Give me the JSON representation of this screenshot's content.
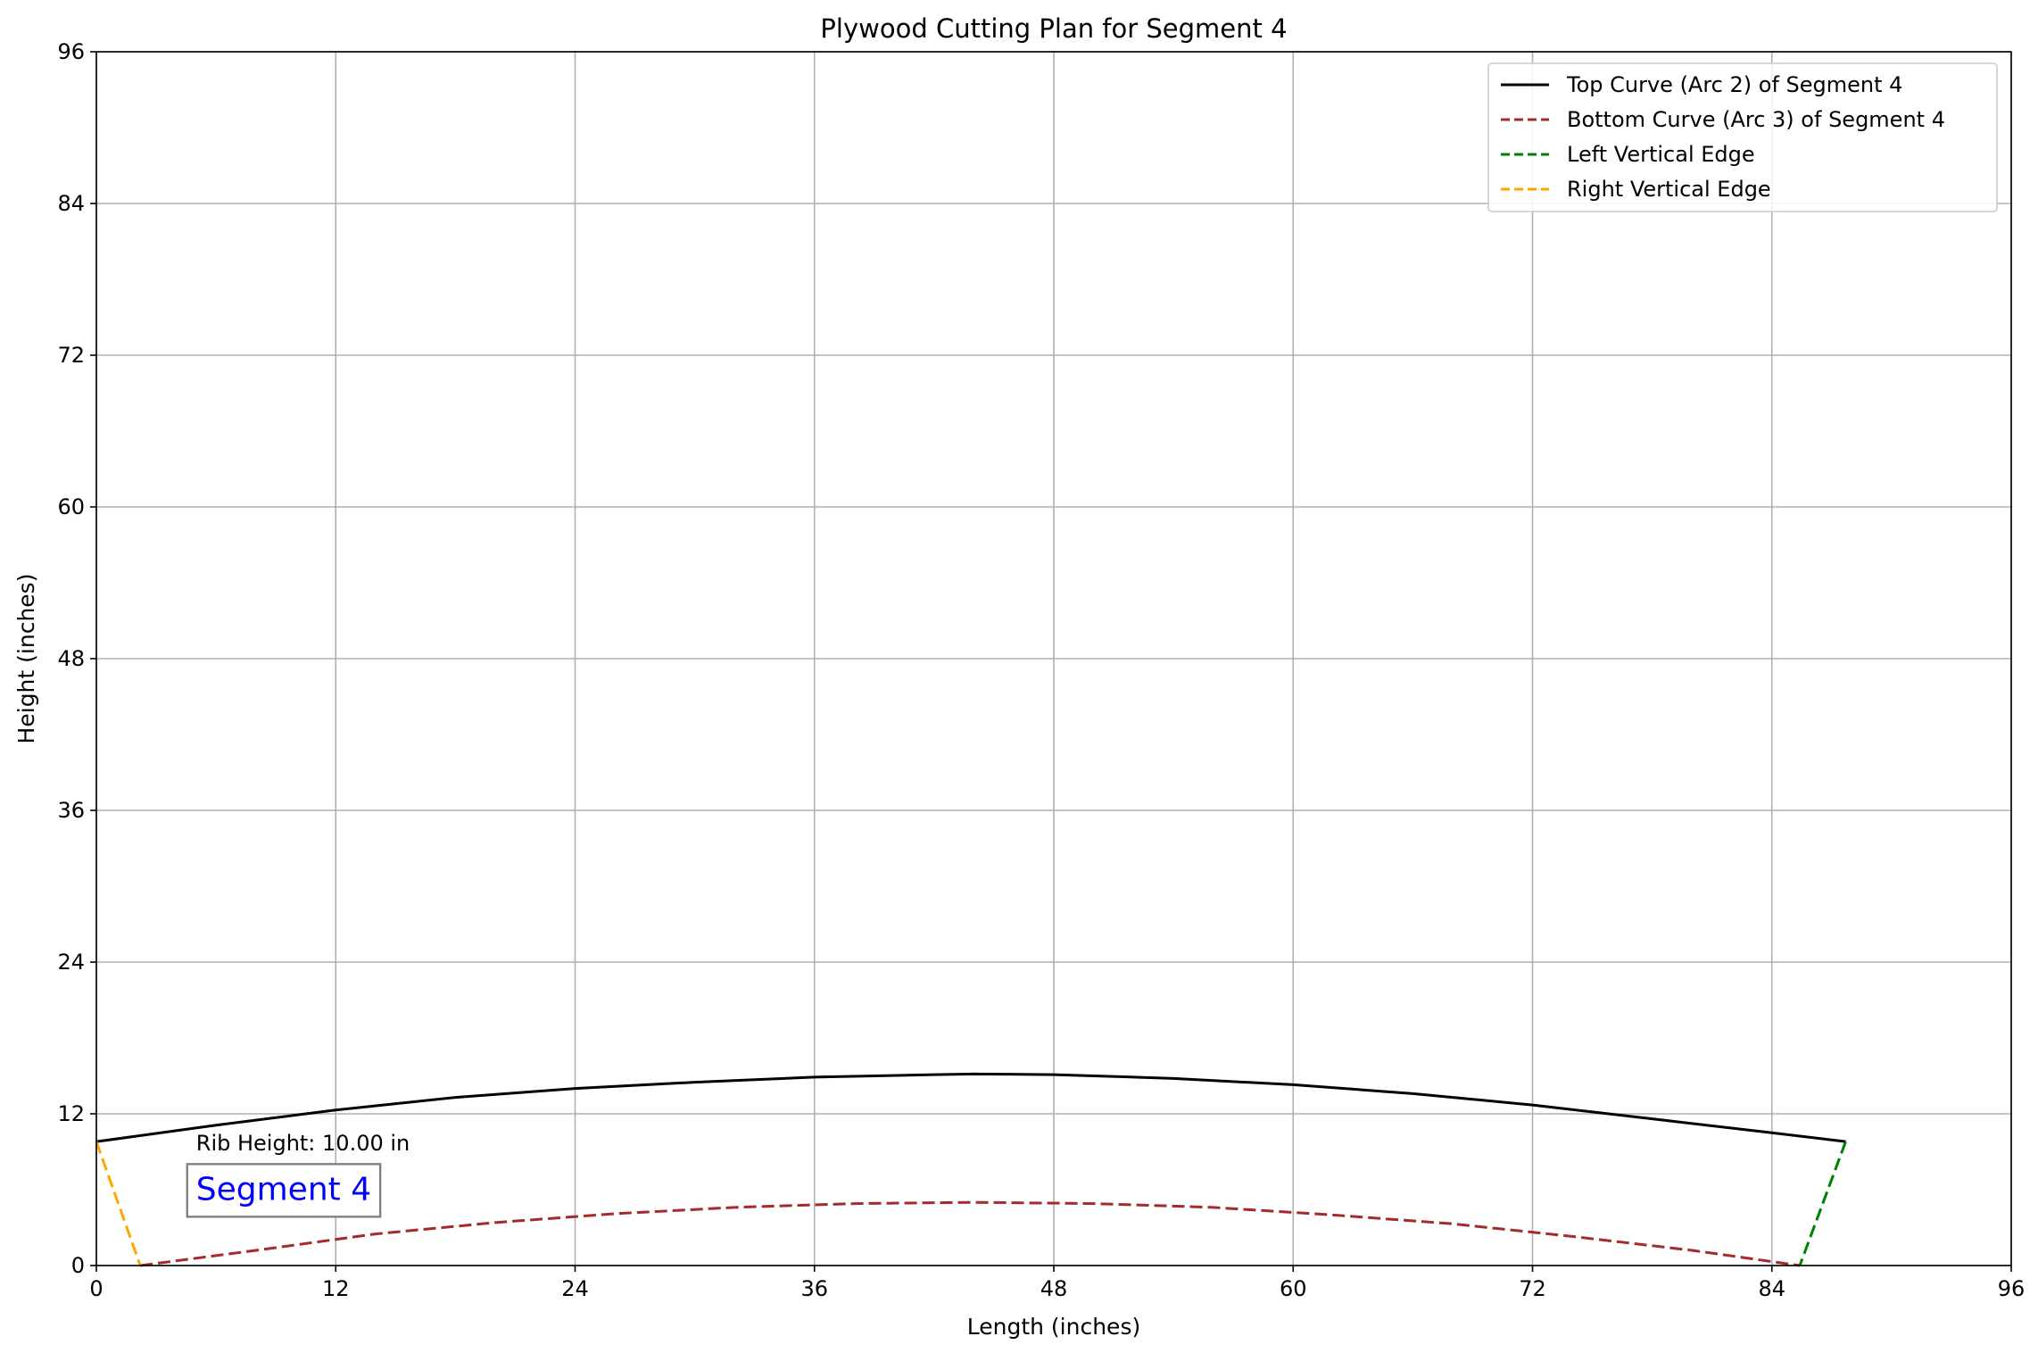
{
  "chart_data": {
    "type": "line",
    "title": "Plywood Cutting Plan for Segment 4",
    "xlabel": "Length (inches)",
    "ylabel": "Height (inches)",
    "xlim": [
      0,
      96
    ],
    "ylim": [
      0,
      96
    ],
    "xticks": [
      0,
      12,
      24,
      36,
      48,
      60,
      72,
      84,
      96
    ],
    "yticks": [
      0,
      12,
      24,
      36,
      48,
      60,
      72,
      84,
      96
    ],
    "grid": true,
    "legend_position": "top-right",
    "series": [
      {
        "name": "Top Curve (Arc 2) of Segment 4",
        "color": "#000000",
        "style": "solid",
        "x": [
          0,
          6,
          12,
          18,
          24,
          30,
          36,
          42,
          44,
          48,
          54,
          60,
          66,
          72,
          78,
          84,
          87.7
        ],
        "y": [
          9.8,
          11.1,
          12.3,
          13.3,
          14.0,
          14.5,
          14.9,
          15.1,
          15.15,
          15.1,
          14.8,
          14.3,
          13.6,
          12.7,
          11.6,
          10.5,
          9.8
        ]
      },
      {
        "name": "Bottom Curve (Arc 3) of Segment 4",
        "color": "#a52a2a",
        "style": "dashed",
        "x": [
          2.2,
          8,
          14,
          20,
          26,
          32,
          38,
          44,
          50,
          56,
          62,
          68,
          74,
          80,
          85.4
        ],
        "y": [
          0,
          1.2,
          2.5,
          3.4,
          4.1,
          4.6,
          4.9,
          5.0,
          4.9,
          4.6,
          4.0,
          3.3,
          2.3,
          1.2,
          0
        ]
      },
      {
        "name": "Left Vertical Edge",
        "color": "#008000",
        "style": "dashed",
        "x": [
          87.7,
          85.4
        ],
        "y": [
          9.8,
          0
        ]
      },
      {
        "name": "Right Vertical Edge",
        "color": "#ffa500",
        "style": "dashed",
        "x": [
          0,
          2.2
        ],
        "y": [
          9.8,
          0
        ]
      }
    ],
    "annotations": [
      {
        "text": "Rib Height: 10.00 in",
        "x": 5,
        "y": 9.1,
        "boxed": false,
        "color": "#000000"
      },
      {
        "text": "Segment 4",
        "x": 5,
        "y": 5.2,
        "boxed": true,
        "color": "#0000ff"
      }
    ]
  }
}
